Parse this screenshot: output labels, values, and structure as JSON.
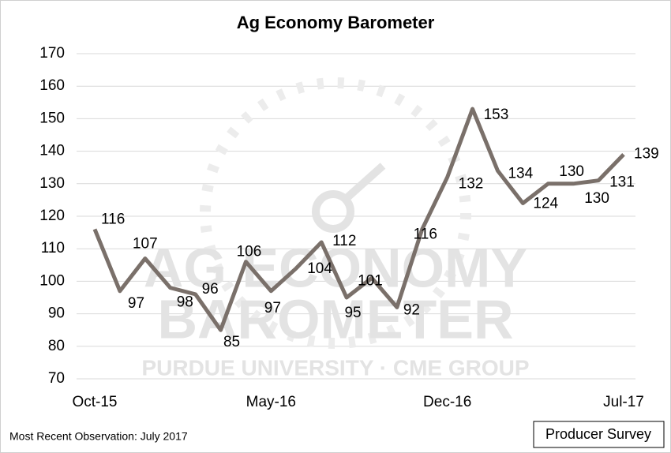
{
  "chart_data": {
    "type": "line",
    "title": "Ag Economy Barometer",
    "categories": [
      "Oct-15",
      null,
      null,
      null,
      null,
      null,
      null,
      "May-16",
      null,
      null,
      null,
      null,
      null,
      null,
      "Dec-16",
      null,
      null,
      null,
      null,
      null,
      null,
      "Jul-17"
    ],
    "series": [
      {
        "name": "Ag Economy Barometer",
        "color": "#7a706a",
        "values": [
          116,
          97,
          107,
          98,
          96,
          85,
          106,
          97,
          104,
          112,
          95,
          101,
          92,
          116,
          132,
          153,
          134,
          124,
          130,
          130,
          131,
          139
        ]
      }
    ],
    "ylim": [
      70,
      170
    ],
    "yticks": [
      70,
      80,
      90,
      100,
      110,
      120,
      130,
      140,
      150,
      160,
      170
    ],
    "grid": true,
    "watermark": [
      "AG ECONOMY",
      "BAROMETER",
      "PURDUE UNIVERSITY  ·  CME GROUP"
    ],
    "footnote": "Most Recent Observation: July 2017",
    "badge": "Producer Survey"
  }
}
